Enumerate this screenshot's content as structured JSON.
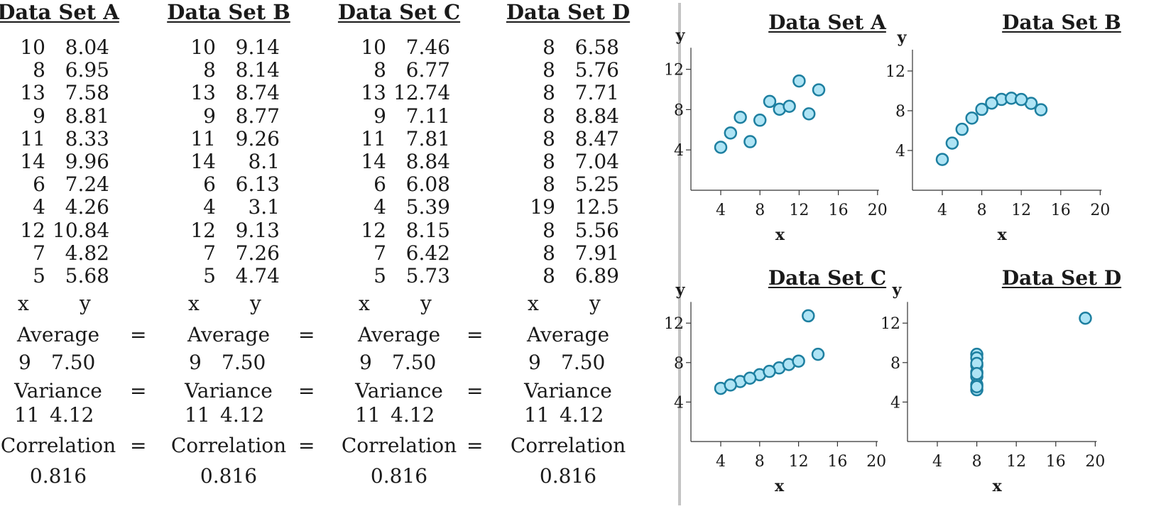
{
  "tables": [
    {
      "title": "Data Set A",
      "x": [
        "10",
        "8",
        "13",
        "9",
        "11",
        "14",
        "6",
        "4",
        "12",
        "7",
        "5"
      ],
      "y": [
        "8.04",
        "6.95",
        "7.58",
        "8.81",
        "8.33",
        "9.96",
        "7.24",
        "4.26",
        "10.84",
        "4.82",
        "5.68"
      ],
      "x_label": "x",
      "y_label": "y",
      "average_label": "Average",
      "average_x": "9",
      "average_y": "7.50",
      "variance_label": "Variance",
      "variance_x": "11",
      "variance_y": "4.12",
      "correlation_label": "Correlation",
      "correlation_value": "0.816"
    },
    {
      "title": "Data Set B",
      "x": [
        "10",
        "8",
        "13",
        "9",
        "11",
        "14",
        "6",
        "4",
        "12",
        "7",
        "5"
      ],
      "y": [
        "9.14",
        "8.14",
        "8.74",
        "8.77",
        "9.26",
        "8.1",
        "6.13",
        "3.1",
        "9.13",
        "7.26",
        "4.74"
      ],
      "x_label": "x",
      "y_label": "y",
      "average_label": "Average",
      "average_x": "9",
      "average_y": "7.50",
      "variance_label": "Variance",
      "variance_x": "11",
      "variance_y": "4.12",
      "correlation_label": "Correlation",
      "correlation_value": "0.816"
    },
    {
      "title": "Data Set C",
      "x": [
        "10",
        "8",
        "13",
        "9",
        "11",
        "14",
        "6",
        "4",
        "12",
        "7",
        "5"
      ],
      "y": [
        "7.46",
        "6.77",
        "12.74",
        "7.11",
        "7.81",
        "8.84",
        "6.08",
        "5.39",
        "8.15",
        "6.42",
        "5.73"
      ],
      "x_label": "x",
      "y_label": "y",
      "average_label": "Average",
      "average_x": "9",
      "average_y": "7.50",
      "variance_label": "Variance",
      "variance_x": "11",
      "variance_y": "4.12",
      "correlation_label": "Correlation",
      "correlation_value": "0.816"
    },
    {
      "title": "Data Set D",
      "x": [
        "8",
        "8",
        "8",
        "8",
        "8",
        "8",
        "8",
        "19",
        "8",
        "8",
        "8"
      ],
      "y": [
        "6.58",
        "5.76",
        "7.71",
        "8.84",
        "8.47",
        "7.04",
        "5.25",
        "12.5",
        "5.56",
        "7.91",
        "6.89"
      ],
      "x_label": "x",
      "y_label": "y",
      "average_label": "Average",
      "average_x": "9",
      "average_y": "7.50",
      "variance_label": "Variance",
      "variance_x": "11",
      "variance_y": "4.12",
      "correlation_label": "Correlation",
      "correlation_value": "0.816"
    }
  ],
  "equals_sign": "=",
  "chart_data": [
    {
      "type": "scatter",
      "title": "Data Set A",
      "xlabel": "x",
      "ylabel": "y",
      "xlim": [
        0,
        20
      ],
      "ylim": [
        0,
        14
      ],
      "xticks": [
        4,
        8,
        12,
        16,
        20
      ],
      "yticks": [
        4,
        8,
        12
      ],
      "marker_color": "#aee4f5",
      "marker_edge": "#1d7fa0",
      "points": [
        [
          10,
          8.04
        ],
        [
          8,
          6.95
        ],
        [
          13,
          7.58
        ],
        [
          9,
          8.81
        ],
        [
          11,
          8.33
        ],
        [
          14,
          9.96
        ],
        [
          6,
          7.24
        ],
        [
          4,
          4.26
        ],
        [
          12,
          10.84
        ],
        [
          7,
          4.82
        ],
        [
          5,
          5.68
        ]
      ]
    },
    {
      "type": "scatter",
      "title": "Data Set B",
      "xlabel": "x",
      "ylabel": "y",
      "xlim": [
        0,
        20
      ],
      "ylim": [
        0,
        14
      ],
      "xticks": [
        4,
        8,
        12,
        16,
        20
      ],
      "yticks": [
        4,
        8,
        12
      ],
      "marker_color": "#aee4f5",
      "marker_edge": "#1d7fa0",
      "points": [
        [
          10,
          9.14
        ],
        [
          8,
          8.14
        ],
        [
          13,
          8.74
        ],
        [
          9,
          8.77
        ],
        [
          11,
          9.26
        ],
        [
          14,
          8.1
        ],
        [
          6,
          6.13
        ],
        [
          4,
          3.1
        ],
        [
          12,
          9.13
        ],
        [
          7,
          7.26
        ],
        [
          5,
          4.74
        ]
      ]
    },
    {
      "type": "scatter",
      "title": "Data Set C",
      "xlabel": "x",
      "ylabel": "y",
      "xlim": [
        0,
        20
      ],
      "ylim": [
        0,
        14
      ],
      "xticks": [
        4,
        8,
        12,
        16,
        20
      ],
      "yticks": [
        4,
        8,
        12
      ],
      "marker_color": "#aee4f5",
      "marker_edge": "#1d7fa0",
      "points": [
        [
          10,
          7.46
        ],
        [
          8,
          6.77
        ],
        [
          13,
          12.74
        ],
        [
          9,
          7.11
        ],
        [
          11,
          7.81
        ],
        [
          14,
          8.84
        ],
        [
          6,
          6.08
        ],
        [
          4,
          5.39
        ],
        [
          12,
          8.15
        ],
        [
          7,
          6.42
        ],
        [
          5,
          5.73
        ]
      ]
    },
    {
      "type": "scatter",
      "title": "Data Set D",
      "xlabel": "x",
      "ylabel": "y",
      "xlim": [
        0,
        20
      ],
      "ylim": [
        0,
        14
      ],
      "xticks": [
        4,
        8,
        12,
        16,
        20
      ],
      "yticks": [
        4,
        8,
        12
      ],
      "marker_color": "#aee4f5",
      "marker_edge": "#1d7fa0",
      "points": [
        [
          8,
          6.58
        ],
        [
          8,
          5.76
        ],
        [
          8,
          7.71
        ],
        [
          8,
          8.84
        ],
        [
          8,
          8.47
        ],
        [
          8,
          7.04
        ],
        [
          8,
          5.25
        ],
        [
          19,
          12.5
        ],
        [
          8,
          5.56
        ],
        [
          8,
          7.91
        ],
        [
          8,
          6.89
        ]
      ]
    }
  ]
}
